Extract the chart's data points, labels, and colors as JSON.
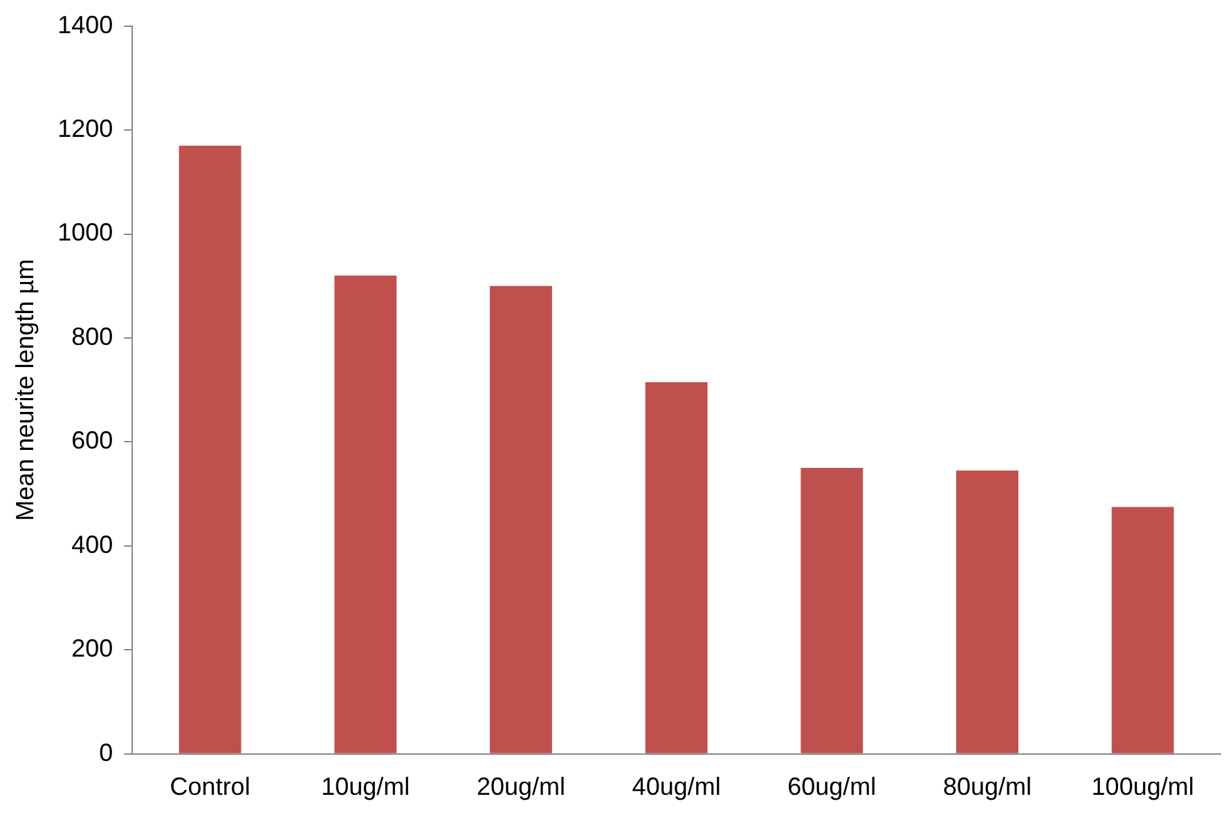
{
  "chart_data": {
    "type": "bar",
    "ylabel": "Mean neurite length µm",
    "categories": [
      "Control",
      "10ug/ml",
      "20ug/ml",
      "40ug/ml",
      "60ug/ml",
      "80ug/ml",
      "100ug/ml"
    ],
    "values": [
      1170,
      920,
      900,
      715,
      550,
      545,
      475
    ],
    "color": "#c0504d",
    "ylim": [
      0,
      1400
    ],
    "yticks": [
      0,
      200,
      400,
      600,
      800,
      1000,
      1200,
      1400
    ],
    "grid": false,
    "legend": false
  }
}
